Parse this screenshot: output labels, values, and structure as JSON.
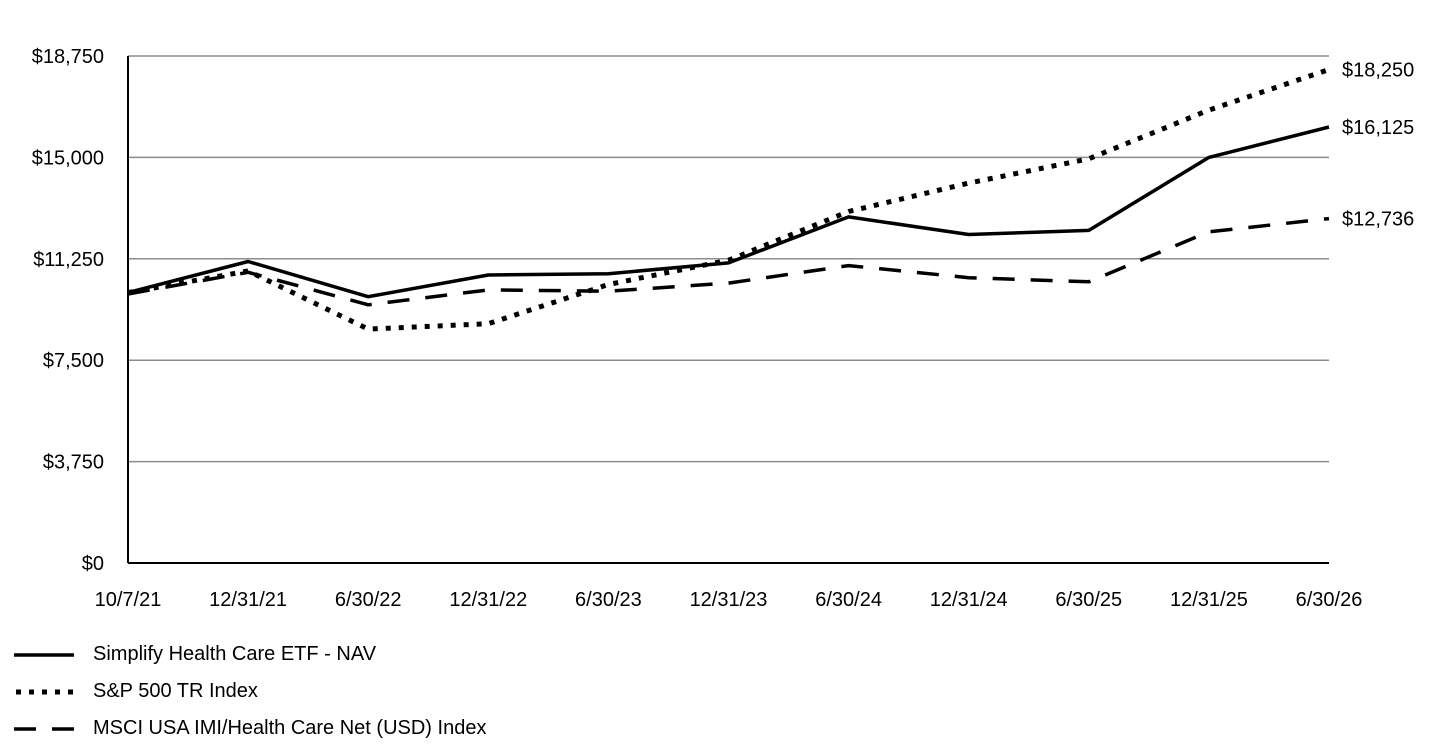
{
  "chart_data": {
    "type": "line",
    "title": "",
    "xlabel": "",
    "ylabel": "",
    "categories": [
      "10/7/21",
      "12/31/21",
      "6/30/22",
      "12/31/22",
      "6/30/23",
      "12/31/23",
      "6/30/24",
      "12/31/24",
      "6/30/25",
      "12/31/25",
      "6/30/26"
    ],
    "ylim": [
      0,
      18750
    ],
    "yticks": [
      0,
      3750,
      7500,
      11250,
      15000,
      18750
    ],
    "ytick_labels": [
      "$0",
      "$3,750",
      "$7,500",
      "$11,250",
      "$15,000",
      "$18,750"
    ],
    "grid": true,
    "legend_position": "bottom-left",
    "series": [
      {
        "name": "Simplify Health Care ETF - NAV",
        "style": "solid",
        "color": "#000000",
        "values": [
          10000,
          11150,
          9850,
          10650,
          10700,
          11100,
          12800,
          12150,
          12300,
          15000,
          16125
        ],
        "end_label": "$16,125"
      },
      {
        "name": "S&P 500 TR Index",
        "style": "dotted",
        "color": "#000000",
        "values": [
          10000,
          10800,
          8650,
          8850,
          10300,
          11200,
          13000,
          14050,
          14950,
          16750,
          18250
        ],
        "end_label": "$18,250"
      },
      {
        "name": "MSCI USA IMI/Health Care Net (USD) Index",
        "style": "dashed",
        "color": "#000000",
        "values": [
          9950,
          10750,
          9550,
          10100,
          10050,
          10350,
          11000,
          10550,
          10400,
          12250,
          12736
        ],
        "end_label": "$12,736"
      }
    ]
  }
}
